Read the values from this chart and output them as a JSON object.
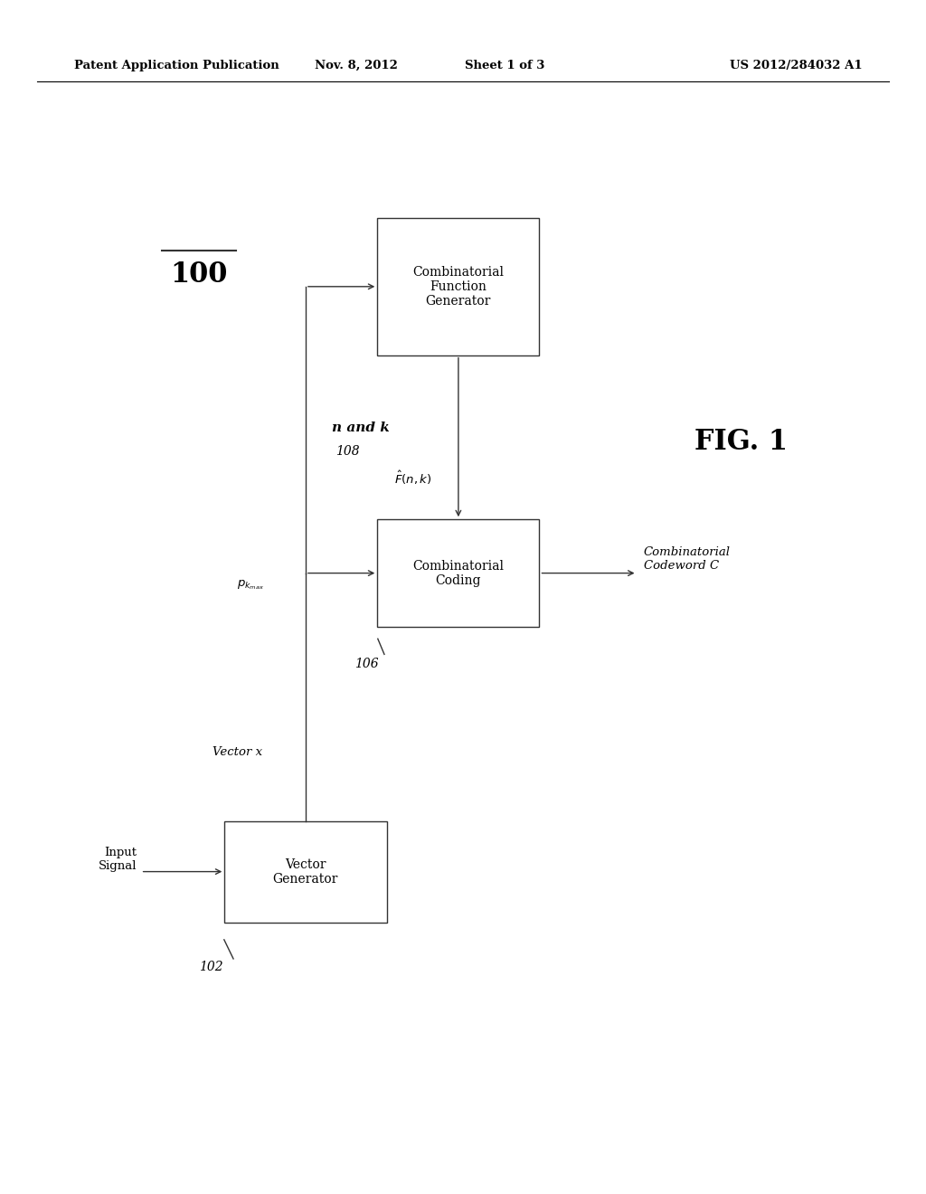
{
  "title_header": "Patent Application Publication",
  "title_date": "Nov. 8, 2012",
  "title_sheet": "Sheet 1 of 3",
  "title_patent": "US 2012/284032 A1",
  "fig_label": "FIG. 1",
  "diagram_label": "100",
  "background_color": "#ffffff",
  "box_edge_color": "#333333",
  "arrow_color": "#333333",
  "text_color": "#000000",
  "header_fontsize": 9.5,
  "label_fontsize": 10,
  "ref_fontsize": 10,
  "fig_fontsize": 22,
  "diagram_ref_fontsize": 20
}
